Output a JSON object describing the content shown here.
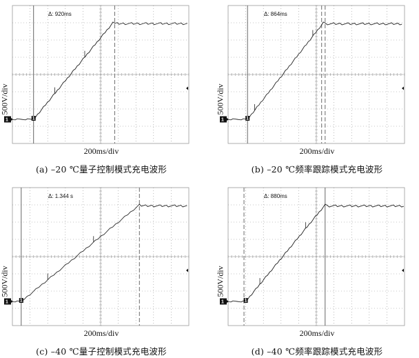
{
  "chart_data": [
    {
      "type": "line",
      "panel_id": "a",
      "caption": "(a) –20 ℃量子控制模式充电波形",
      "xlabel": "200ms/div",
      "ylabel": "500V/div",
      "delta_label": "Δ: 920ms",
      "x_divisions": 10,
      "y_divisions": 8,
      "grid": true,
      "trace": {
        "start_div": 1.2,
        "end_div": 5.7,
        "start_level_div": -2.6,
        "end_level_div": 3.0,
        "ripple_spikes": [
          2.4,
          4.1
        ]
      },
      "cursors": [
        {
          "style": "solid",
          "div": 1.2
        },
        {
          "style": "dashed",
          "div": 5.8
        }
      ],
      "ground_marker_label": "1",
      "trigger_marker": true
    },
    {
      "type": "line",
      "panel_id": "b",
      "caption": "(b) –20 ℃频率跟踪模式充电波形",
      "xlabel": "200ms/div",
      "ylabel": "500V/div",
      "delta_label": "Δ: 864ms",
      "x_divisions": 10,
      "y_divisions": 8,
      "grid": true,
      "trace": {
        "start_div": 1.1,
        "end_div": 5.4,
        "start_level_div": -2.6,
        "end_level_div": 3.0,
        "ripple_spikes": [
          1.5,
          4.8
        ]
      },
      "cursors": [
        {
          "style": "solid",
          "div": 1.1
        },
        {
          "style": "dashed",
          "div": 5.3
        },
        {
          "style": "dashed",
          "div": 5.5
        }
      ],
      "ground_marker_label": "1",
      "trigger_marker": true
    },
    {
      "type": "line",
      "panel_id": "c",
      "caption": "(c) –40 ℃量子控制模式充电波形",
      "xlabel": "200ms/div",
      "ylabel": "500V/div",
      "delta_label": "Δ: 1.344 s",
      "x_divisions": 10,
      "y_divisions": 8,
      "grid": true,
      "trace": {
        "start_div": 0.5,
        "end_div": 7.2,
        "start_level_div": -2.6,
        "end_level_div": 3.0,
        "ripple_spikes": [
          2.0,
          4.6
        ]
      },
      "cursors": [
        {
          "style": "solid",
          "div": 0.5
        },
        {
          "style": "dashed",
          "div": 7.2
        }
      ],
      "ground_marker_label": "1",
      "trigger_marker": true
    },
    {
      "type": "line",
      "panel_id": "d",
      "caption": "(d) –40 ℃频率跟踪模式充电波形",
      "xlabel": "200ms/div",
      "ylabel": "500V/div",
      "delta_label": "Δ: 880ms",
      "x_divisions": 10,
      "y_divisions": 8,
      "grid": true,
      "trace": {
        "start_div": 1.0,
        "end_div": 5.5,
        "start_level_div": -2.6,
        "end_level_div": 3.0,
        "ripple_spikes": [
          1.8,
          4.4
        ]
      },
      "cursors": [
        {
          "style": "dashed",
          "div": 0.9
        },
        {
          "style": "solid",
          "div": 5.5
        }
      ],
      "ground_marker_label": "1",
      "trigger_marker": true
    }
  ]
}
